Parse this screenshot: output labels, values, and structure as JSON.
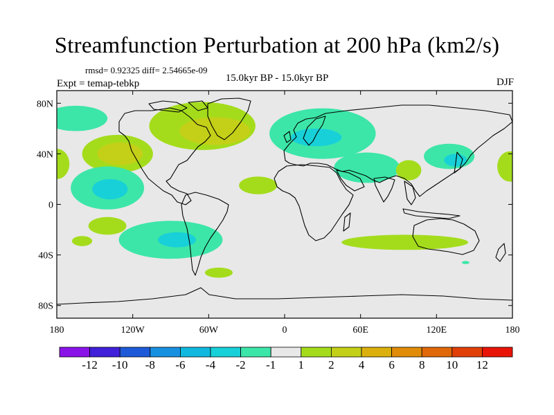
{
  "chart_data": {
    "type": "contour-map",
    "title": "Streamfunction Perturbation at 200 hPa (km2/s)",
    "subtitle": "rmsd= 0.92325 diff= 2.54665e-09",
    "left_string": "Expt = temap-tebkp",
    "center_string": "15.0kyr BP - 15.0kyr BP",
    "right_string": "DJF",
    "lon_range": [
      -180,
      180
    ],
    "lat_range": [
      -90,
      90
    ],
    "x_ticks": [
      {
        "value": -180,
        "label": "180"
      },
      {
        "value": -120,
        "label": "120W"
      },
      {
        "value": -60,
        "label": "60W"
      },
      {
        "value": 0,
        "label": "0"
      },
      {
        "value": 60,
        "label": "60E"
      },
      {
        "value": 120,
        "label": "120E"
      },
      {
        "value": 180,
        "label": "180"
      }
    ],
    "y_ticks": [
      {
        "value": 80,
        "label": "80N"
      },
      {
        "value": 40,
        "label": "40N"
      },
      {
        "value": 0,
        "label": "0"
      },
      {
        "value": -40,
        "label": "40S"
      },
      {
        "value": -80,
        "label": "80S"
      }
    ],
    "colorbar": {
      "colors": [
        "#8a14e8",
        "#4020d8",
        "#1e5ad8",
        "#1890e0",
        "#10b8e0",
        "#18d0d8",
        "#3ce6a8",
        "#e8e8e8",
        "#a4dc1c",
        "#c4d018",
        "#dcb00c",
        "#e08c08",
        "#e06808",
        "#e04008",
        "#e81408"
      ],
      "labels": [
        "-12",
        "-10",
        "-8",
        "-6",
        "-4",
        "-2",
        "-1",
        "1",
        "2",
        "4",
        "6",
        "8",
        "10",
        "12"
      ]
    },
    "anomalies": [
      {
        "lon": -165,
        "lat": 68,
        "rlon": 25,
        "rlat": 10,
        "level": -1
      },
      {
        "lon": -65,
        "lat": 62,
        "rlon": 42,
        "rlat": 19,
        "level": 1
      },
      {
        "lon": -55,
        "lat": 58,
        "rlon": 28,
        "rlat": 11,
        "level": 2
      },
      {
        "lon": 30,
        "lat": 56,
        "rlon": 42,
        "rlat": 20,
        "level": -1
      },
      {
        "lon": 25,
        "lat": 53,
        "rlon": 20,
        "rlat": 7,
        "level": -2
      },
      {
        "lon": 130,
        "lat": 38,
        "rlon": 20,
        "rlat": 10,
        "level": -1
      },
      {
        "lon": 135,
        "lat": 35,
        "rlon": 9,
        "rlat": 5,
        "level": -2
      },
      {
        "lon": -132,
        "lat": 40,
        "rlon": 28,
        "rlat": 15,
        "level": 1
      },
      {
        "lon": -130,
        "lat": 40,
        "rlon": 18,
        "rlat": 9,
        "level": 2
      },
      {
        "lon": 178,
        "lat": 30,
        "rlon": 10,
        "rlat": 12,
        "level": 1
      },
      {
        "lon": -180,
        "lat": 32,
        "rlon": 10,
        "rlat": 12,
        "level": 1
      },
      {
        "lon": 65,
        "lat": 29,
        "rlon": 26,
        "rlat": 12,
        "level": -1
      },
      {
        "lon": 98,
        "lat": 27,
        "rlon": 10,
        "rlat": 8,
        "level": 1
      },
      {
        "lon": -21,
        "lat": 15,
        "rlon": 15,
        "rlat": 7,
        "level": 1
      },
      {
        "lon": -140,
        "lat": 13,
        "rlon": 29,
        "rlat": 17,
        "level": -1
      },
      {
        "lon": -138,
        "lat": 12,
        "rlon": 14,
        "rlat": 8,
        "level": -2
      },
      {
        "lon": -140,
        "lat": -17,
        "rlon": 15,
        "rlat": 7,
        "level": 1
      },
      {
        "lon": -160,
        "lat": -29,
        "rlon": 8,
        "rlat": 4,
        "level": 1
      },
      {
        "lon": -90,
        "lat": -28,
        "rlon": 41,
        "rlat": 15,
        "level": -1
      },
      {
        "lon": -85,
        "lat": -28,
        "rlon": 15,
        "rlat": 6,
        "level": -2
      },
      {
        "lon": 95,
        "lat": -30,
        "rlon": 50,
        "rlat": 6,
        "level": 1
      },
      {
        "lon": -52,
        "lat": -54,
        "rlon": 11,
        "rlat": 4,
        "level": 1
      },
      {
        "lon": 143,
        "lat": -46,
        "rlon": 3,
        "rlat": 1.2,
        "level": -1
      }
    ]
  }
}
